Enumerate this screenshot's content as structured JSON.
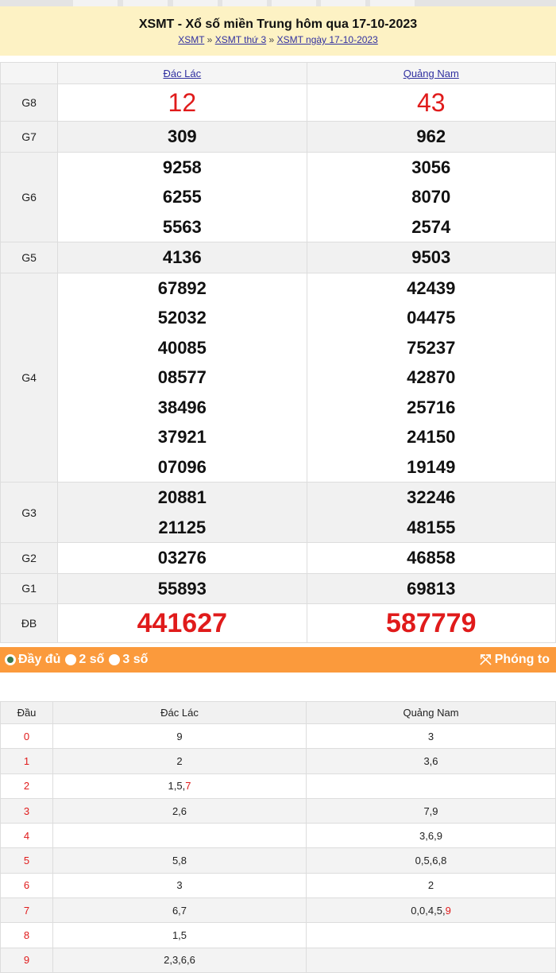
{
  "header": {
    "title": "XSMT - Xổ số miền Trung hôm qua 17-10-2023",
    "breadcrumb": [
      "XSMT",
      "XSMT thứ 3",
      "XSMT ngày 17-10-2023"
    ],
    "separator": "»"
  },
  "provinces": [
    "Đác Lác",
    "Quảng Nam"
  ],
  "prizes": [
    {
      "label": "G8",
      "a": [
        "12"
      ],
      "b": [
        "43"
      ]
    },
    {
      "label": "G7",
      "a": [
        "309"
      ],
      "b": [
        "962"
      ]
    },
    {
      "label": "G6",
      "a": [
        "9258",
        "6255",
        "5563"
      ],
      "b": [
        "3056",
        "8070",
        "2574"
      ]
    },
    {
      "label": "G5",
      "a": [
        "4136"
      ],
      "b": [
        "9503"
      ]
    },
    {
      "label": "G4",
      "a": [
        "67892",
        "52032",
        "40085",
        "08577",
        "38496",
        "37921",
        "07096"
      ],
      "b": [
        "42439",
        "04475",
        "75237",
        "42870",
        "25716",
        "24150",
        "19149"
      ]
    },
    {
      "label": "G3",
      "a": [
        "20881",
        "21125"
      ],
      "b": [
        "32246",
        "48155"
      ]
    },
    {
      "label": "G2",
      "a": [
        "03276"
      ],
      "b": [
        "46858"
      ]
    },
    {
      "label": "G1",
      "a": [
        "55893"
      ],
      "b": [
        "69813"
      ]
    },
    {
      "label": "ĐB",
      "a": [
        "441627"
      ],
      "b": [
        "587779"
      ]
    }
  ],
  "options": {
    "items": [
      "Đầy đủ",
      "2 số",
      "3 số"
    ],
    "selected": "Đầy đủ",
    "zoom_label": "Phóng to"
  },
  "loto": {
    "headers": [
      "Đầu",
      "Đác Lác",
      "Quảng Nam"
    ],
    "rows": [
      {
        "d": "0",
        "a": "9",
        "b": "3"
      },
      {
        "d": "1",
        "a": "2",
        "b": "3,6"
      },
      {
        "d": "2",
        "a": "1,5,",
        "a_red": "7",
        "b": ""
      },
      {
        "d": "3",
        "a": "2,6",
        "b": "7,9"
      },
      {
        "d": "4",
        "a": "",
        "b": "3,6,9"
      },
      {
        "d": "5",
        "a": "5,8",
        "b": "0,5,6,8"
      },
      {
        "d": "6",
        "a": "3",
        "b": "2"
      },
      {
        "d": "7",
        "a": "6,7",
        "b": "0,0,4,5,",
        "b_red": "9"
      },
      {
        "d": "8",
        "a": "1,5",
        "b": ""
      },
      {
        "d": "9",
        "a": "2,3,6,6",
        "b": ""
      }
    ]
  },
  "colors": {
    "accent": "#fb9a3c",
    "red": "#e01b1b",
    "header_bg": "#fdf2c4",
    "link": "#3030a0"
  }
}
